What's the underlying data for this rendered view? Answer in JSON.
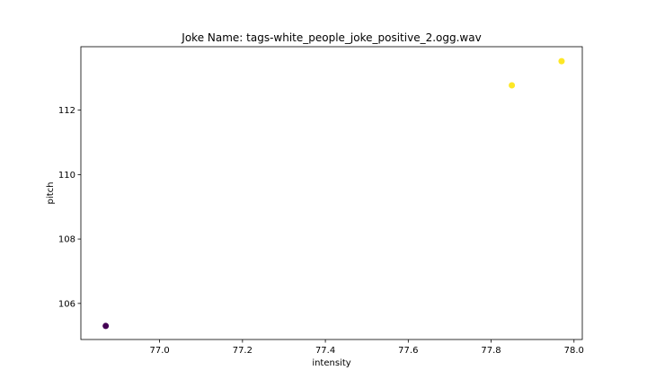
{
  "chart_data": {
    "type": "scatter",
    "title": "Joke Name: tags-white_people_joke_positive_2.ogg.wav",
    "xlabel": "intensity",
    "ylabel": "pitch",
    "xlim": [
      76.81,
      78.02
    ],
    "ylim": [
      104.88,
      113.97
    ],
    "xticks": [
      77.0,
      77.2,
      77.4,
      77.6,
      77.8,
      78.0
    ],
    "xtick_labels": [
      "77.0",
      "77.2",
      "77.4",
      "77.6",
      "77.8",
      "78.0"
    ],
    "yticks": [
      106,
      108,
      110,
      112
    ],
    "ytick_labels": [
      "106",
      "108",
      "110",
      "112"
    ],
    "grid": false,
    "points": [
      {
        "x": 76.87,
        "y": 105.3,
        "color": "#440154"
      },
      {
        "x": 77.85,
        "y": 112.77,
        "color": "#fde725"
      },
      {
        "x": 77.97,
        "y": 113.52,
        "color": "#fde725"
      }
    ]
  }
}
